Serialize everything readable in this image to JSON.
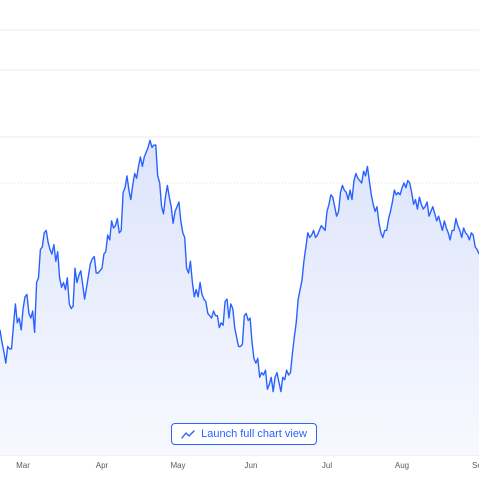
{
  "launch_button": {
    "label": "Launch full chart view",
    "icon": "trend-line-icon"
  },
  "colors": {
    "line": "#2962ff",
    "fill_top": "#dde4fb",
    "fill_bottom": "#f7f9ff",
    "grid": "#e9ecf0",
    "accent": "#2962ff"
  },
  "chart_data": {
    "type": "area",
    "title": "",
    "xlabel": "",
    "ylabel": "",
    "x_tick_labels": [
      "Mar",
      "Apr",
      "May",
      "Jun",
      "Jul",
      "Aug",
      "Se"
    ],
    "x_index_range": [
      0,
      239
    ],
    "y_scale": [
      0,
      100
    ],
    "grid": true,
    "legend": "none",
    "series": [
      {
        "values": [
          38,
          33,
          29,
          24,
          31,
          30,
          30,
          40,
          49,
          41,
          43,
          38,
          47,
          52,
          53,
          45,
          43,
          46,
          37,
          58,
          60,
          72,
          73,
          79,
          80,
          75,
          72,
          70,
          74,
          67,
          71,
          60,
          56,
          58,
          55,
          60,
          49,
          47,
          48,
          64,
          58,
          61,
          63,
          57,
          51,
          56,
          61,
          66,
          68,
          69,
          62,
          62,
          63,
          64,
          70,
          71,
          78,
          76,
          84,
          81,
          82,
          85,
          79,
          80,
          96,
          98,
          103,
          97,
          93,
          99,
          104,
          102,
          107,
          111,
          107,
          111,
          113,
          115,
          118,
          115,
          116,
          116,
          103,
          100,
          90,
          87,
          94,
          99,
          94,
          90,
          83,
          88,
          90,
          92,
          84,
          79,
          77,
          64,
          62,
          67,
          58,
          52,
          55,
          52,
          58,
          53,
          51,
          50,
          45,
          44,
          43,
          46,
          44,
          44,
          39,
          41,
          40,
          50,
          51,
          43,
          49,
          47,
          39,
          35,
          31,
          31,
          32,
          44,
          45,
          42,
          43,
          33,
          26,
          24,
          26,
          18,
          20,
          19,
          21,
          13,
          15,
          18,
          12,
          18,
          20,
          16,
          12,
          18,
          17,
          21,
          19,
          20,
          28,
          35,
          41,
          51,
          55,
          59,
          67,
          73,
          79,
          77,
          78,
          80,
          77,
          78,
          80,
          82,
          81,
          80,
          88,
          91,
          95,
          94,
          90,
          86,
          88,
          96,
          99,
          97,
          96,
          93,
          97,
          93,
          101,
          104,
          102,
          101,
          100,
          105,
          103,
          107,
          101,
          95,
          91,
          88,
          90,
          83,
          79,
          77,
          80,
          80,
          85,
          88,
          92,
          97,
          95,
          96,
          95,
          98,
          100,
          98,
          101,
          100,
          96,
          91,
          93,
          89,
          94,
          91,
          89,
          90,
          92,
          86,
          88,
          90,
          87,
          84,
          86,
          83,
          80,
          84,
          81,
          79,
          76,
          80,
          80,
          85,
          82,
          80,
          77,
          81,
          79,
          78,
          76,
          79,
          78,
          73,
          72,
          70
        ]
      }
    ]
  }
}
